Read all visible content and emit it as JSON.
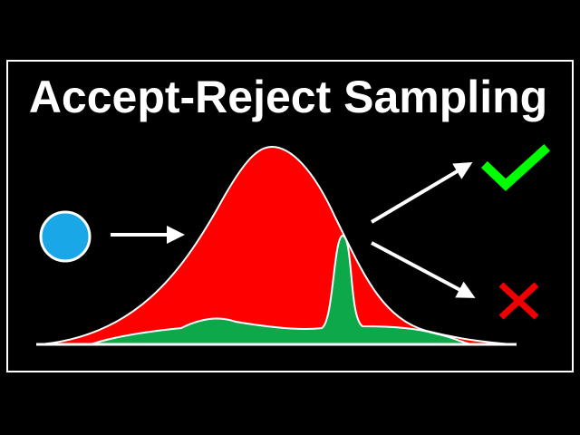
{
  "title": "Accept-Reject Sampling"
}
